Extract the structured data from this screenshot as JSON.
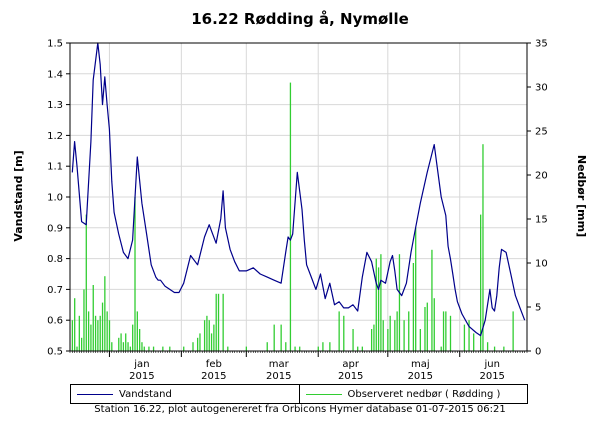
{
  "chart_data": {
    "type": "line",
    "title": "16.22 Rødding å, Nymølle",
    "left_axis": {
      "label": "Vandstand [m]",
      "ylim": [
        0.5,
        1.5
      ],
      "ticks": [
        "0.5",
        "0.6",
        "0.7",
        "0.8",
        "0.9",
        "1.0",
        "1.1",
        "1.2",
        "1.3",
        "1.4",
        "1.5"
      ]
    },
    "right_axis": {
      "label": "Nedbør [mm]",
      "ylim": [
        0,
        35
      ],
      "ticks": [
        "0",
        "5",
        "10",
        "15",
        "20",
        "25",
        "30",
        "35"
      ]
    },
    "x_axis": {
      "range": [
        "2014-12-15",
        "2015-06-30"
      ],
      "months": [
        {
          "label": "jan",
          "year": "2015",
          "date": "2015-01-15"
        },
        {
          "label": "feb",
          "year": "2015",
          "date": "2015-02-15"
        },
        {
          "label": "mar",
          "year": "2015",
          "date": "2015-03-15"
        },
        {
          "label": "apr",
          "year": "2015",
          "date": "2015-04-15"
        },
        {
          "label": "maj",
          "year": "2015",
          "date": "2015-05-15"
        },
        {
          "label": "jun",
          "year": "2015",
          "date": "2015-06-15"
        }
      ],
      "month_starts": [
        "2015-01-01",
        "2015-02-01",
        "2015-03-01",
        "2015-04-01",
        "2015-05-01",
        "2015-06-01"
      ]
    },
    "series": [
      {
        "name": "Vandstand",
        "axis": "left",
        "color": "#00008b",
        "x": [
          "2014-12-16",
          "2014-12-17",
          "2014-12-18",
          "2014-12-20",
          "2014-12-22",
          "2014-12-24",
          "2014-12-25",
          "2014-12-27",
          "2014-12-28",
          "2014-12-29",
          "2014-12-30",
          "2014-12-31",
          "2015-01-01",
          "2015-01-02",
          "2015-01-03",
          "2015-01-05",
          "2015-01-07",
          "2015-01-09",
          "2015-01-11",
          "2015-01-13",
          "2015-01-15",
          "2015-01-17",
          "2015-01-19",
          "2015-01-20",
          "2015-01-21",
          "2015-01-22",
          "2015-01-23",
          "2015-01-25",
          "2015-01-27",
          "2015-01-29",
          "2015-01-31",
          "2015-02-02",
          "2015-02-05",
          "2015-02-08",
          "2015-02-11",
          "2015-02-13",
          "2015-02-14",
          "2015-02-16",
          "2015-02-18",
          "2015-02-19",
          "2015-02-20",
          "2015-02-22",
          "2015-02-24",
          "2015-02-26",
          "2015-03-01",
          "2015-03-04",
          "2015-03-07",
          "2015-03-10",
          "2015-03-13",
          "2015-03-16",
          "2015-03-18",
          "2015-03-19",
          "2015-03-20",
          "2015-03-21",
          "2015-03-23",
          "2015-03-25",
          "2015-03-26",
          "2015-03-27",
          "2015-03-29",
          "2015-03-31",
          "2015-04-02",
          "2015-04-04",
          "2015-04-06",
          "2015-04-08",
          "2015-04-10",
          "2015-04-12",
          "2015-04-14",
          "2015-04-16",
          "2015-04-18",
          "2015-04-20",
          "2015-04-22",
          "2015-04-24",
          "2015-04-26",
          "2015-04-27",
          "2015-04-28",
          "2015-04-30",
          "2015-05-02",
          "2015-05-03",
          "2015-05-04",
          "2015-05-05",
          "2015-05-07",
          "2015-05-09",
          "2015-05-11",
          "2015-05-13",
          "2015-05-15",
          "2015-05-18",
          "2015-05-21",
          "2015-05-24",
          "2015-05-26",
          "2015-05-27",
          "2015-05-28",
          "2015-05-29",
          "2015-05-30",
          "2015-05-31",
          "2015-06-02",
          "2015-06-05",
          "2015-06-08",
          "2015-06-10",
          "2015-06-12",
          "2015-06-14",
          "2015-06-15",
          "2015-06-16",
          "2015-06-17",
          "2015-06-18",
          "2015-06-19",
          "2015-06-21",
          "2015-06-23",
          "2015-06-25",
          "2015-06-27",
          "2015-06-29"
        ],
        "y": [
          1.08,
          1.18,
          1.1,
          0.92,
          0.91,
          1.18,
          1.38,
          1.5,
          1.43,
          1.3,
          1.39,
          1.3,
          1.22,
          1.05,
          0.95,
          0.88,
          0.82,
          0.8,
          0.86,
          1.13,
          0.98,
          0.88,
          0.78,
          0.76,
          0.74,
          0.73,
          0.73,
          0.71,
          0.7,
          0.69,
          0.69,
          0.72,
          0.81,
          0.78,
          0.87,
          0.91,
          0.89,
          0.85,
          0.93,
          1.02,
          0.9,
          0.83,
          0.79,
          0.76,
          0.76,
          0.77,
          0.75,
          0.74,
          0.73,
          0.72,
          0.82,
          0.87,
          0.86,
          0.88,
          1.08,
          0.96,
          0.86,
          0.78,
          0.74,
          0.7,
          0.75,
          0.67,
          0.72,
          0.65,
          0.66,
          0.64,
          0.64,
          0.65,
          0.63,
          0.74,
          0.82,
          0.79,
          0.72,
          0.7,
          0.73,
          0.72,
          0.79,
          0.81,
          0.76,
          0.7,
          0.68,
          0.72,
          0.82,
          0.9,
          0.98,
          1.08,
          1.17,
          1.0,
          0.94,
          0.84,
          0.8,
          0.75,
          0.7,
          0.66,
          0.62,
          0.58,
          0.56,
          0.55,
          0.6,
          0.7,
          0.64,
          0.63,
          0.68,
          0.77,
          0.83,
          0.82,
          0.75,
          0.68,
          0.64,
          0.6
        ]
      },
      {
        "name": "Observeret nedbør ( Rødding )",
        "axis": "right",
        "color": "#32cd32",
        "type": "bar",
        "x": [
          "2014-12-16",
          "2014-12-17",
          "2014-12-18",
          "2014-12-19",
          "2014-12-20",
          "2014-12-21",
          "2014-12-22",
          "2014-12-23",
          "2014-12-24",
          "2014-12-25",
          "2014-12-26",
          "2014-12-27",
          "2014-12-28",
          "2014-12-29",
          "2014-12-30",
          "2014-12-31",
          "2015-01-01",
          "2015-01-02",
          "2015-01-05",
          "2015-01-06",
          "2015-01-07",
          "2015-01-08",
          "2015-01-09",
          "2015-01-10",
          "2015-01-11",
          "2015-01-12",
          "2015-01-13",
          "2015-01-14",
          "2015-01-15",
          "2015-01-16",
          "2015-01-18",
          "2015-01-20",
          "2015-01-24",
          "2015-01-27",
          "2015-02-02",
          "2015-02-06",
          "2015-02-08",
          "2015-02-09",
          "2015-02-11",
          "2015-02-12",
          "2015-02-13",
          "2015-02-14",
          "2015-02-15",
          "2015-02-16",
          "2015-02-17",
          "2015-02-19",
          "2015-02-21",
          "2015-03-01",
          "2015-03-10",
          "2015-03-13",
          "2015-03-16",
          "2015-03-18",
          "2015-03-20",
          "2015-03-22",
          "2015-03-24",
          "2015-04-01",
          "2015-04-03",
          "2015-04-06",
          "2015-04-10",
          "2015-04-12",
          "2015-04-16",
          "2015-04-18",
          "2015-04-20",
          "2015-04-24",
          "2015-04-25",
          "2015-04-26",
          "2015-04-27",
          "2015-04-28",
          "2015-04-29",
          "2015-05-01",
          "2015-05-02",
          "2015-05-04",
          "2015-05-05",
          "2015-05-06",
          "2015-05-08",
          "2015-05-10",
          "2015-05-12",
          "2015-05-13",
          "2015-05-15",
          "2015-05-17",
          "2015-05-18",
          "2015-05-20",
          "2015-05-21",
          "2015-05-24",
          "2015-05-25",
          "2015-05-26",
          "2015-05-28",
          "2015-06-03",
          "2015-06-05",
          "2015-06-07",
          "2015-06-10",
          "2015-06-11",
          "2015-06-13",
          "2015-06-16",
          "2015-06-20",
          "2015-06-24"
        ],
        "y": [
          3.5,
          6,
          0.5,
          4,
          1.5,
          7,
          15.5,
          4.5,
          3,
          7.5,
          4,
          3.5,
          4,
          5.5,
          8.5,
          4.5,
          3.5,
          1,
          1.5,
          2,
          1,
          2,
          1,
          0.5,
          3,
          17.5,
          4.5,
          2.5,
          1,
          0.5,
          0.5,
          0.5,
          0.5,
          0.5,
          0.5,
          1,
          1.5,
          2,
          3.5,
          4,
          3.5,
          2,
          3,
          6.5,
          6.5,
          6.5,
          0.5,
          0.5,
          1,
          3,
          3,
          1,
          30.5,
          0.5,
          0.5,
          0.5,
          1,
          1,
          4.5,
          4,
          2.5,
          0.5,
          0.5,
          2.5,
          3,
          10.5,
          9.5,
          11,
          3.5,
          2.5,
          4,
          3.5,
          4.5,
          11,
          3.5,
          4.5,
          10,
          14,
          2.5,
          5,
          5.5,
          11.5,
          6,
          0.5,
          4.5,
          4.5,
          4,
          3,
          3.5,
          2,
          15.5,
          23.5,
          1,
          0.5,
          0.5,
          4.5
        ]
      }
    ],
    "grid": true,
    "legend": "bottom"
  },
  "legend": {
    "entries": [
      {
        "label": "Vandstand",
        "color": "#00008b"
      },
      {
        "label": "Observeret nedbør ( Rødding )",
        "color": "#32cd32"
      }
    ]
  },
  "footer": "Station 16.22, plot autogenereret fra Orbicons Hymer database 01-07-2015 06:21"
}
